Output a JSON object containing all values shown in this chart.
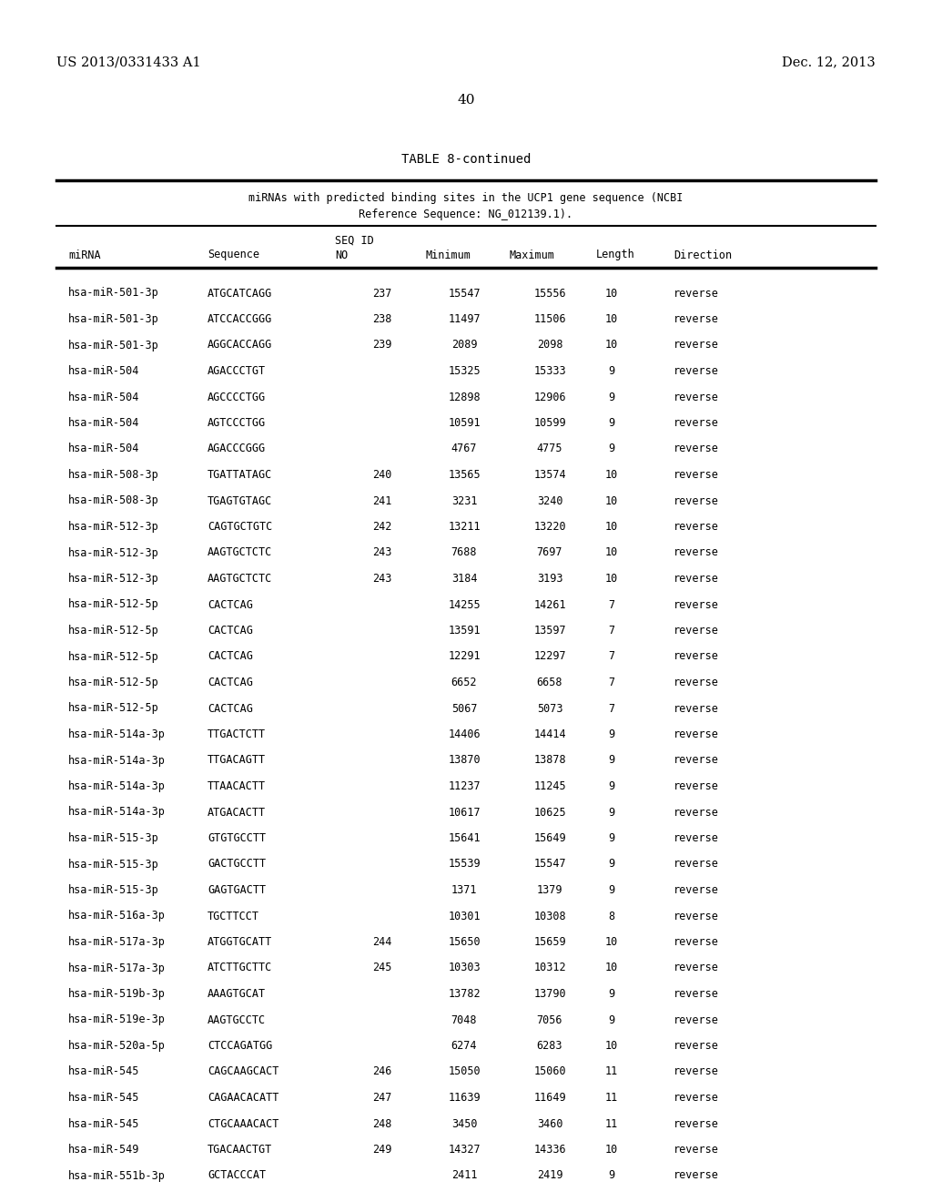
{
  "page_number": "40",
  "patent_number": "US 2013/0331433 A1",
  "patent_date": "Dec. 12, 2013",
  "table_title": "TABLE 8-continued",
  "table_header_line1": "miRNAs with predicted binding sites in the UCP1 gene sequence (NCBI",
  "table_header_line2": "Reference Sequence: NG_012139.1).",
  "rows": [
    [
      "hsa-miR-501-3p",
      "ATGCATCAGG",
      "237",
      "15547",
      "15556",
      "10",
      "reverse"
    ],
    [
      "hsa-miR-501-3p",
      "ATCCACCGGG",
      "238",
      "11497",
      "11506",
      "10",
      "reverse"
    ],
    [
      "hsa-miR-501-3p",
      "AGGCACCAGG",
      "239",
      "2089",
      "2098",
      "10",
      "reverse"
    ],
    [
      "hsa-miR-504",
      "AGACCCTGT",
      "",
      "15325",
      "15333",
      "9",
      "reverse"
    ],
    [
      "hsa-miR-504",
      "AGCCCCTGG",
      "",
      "12898",
      "12906",
      "9",
      "reverse"
    ],
    [
      "hsa-miR-504",
      "AGTCCCTGG",
      "",
      "10591",
      "10599",
      "9",
      "reverse"
    ],
    [
      "hsa-miR-504",
      "AGACCCGGG",
      "",
      "4767",
      "4775",
      "9",
      "reverse"
    ],
    [
      "hsa-miR-508-3p",
      "TGATTATAGC",
      "240",
      "13565",
      "13574",
      "10",
      "reverse"
    ],
    [
      "hsa-miR-508-3p",
      "TGAGTGTAGC",
      "241",
      "3231",
      "3240",
      "10",
      "reverse"
    ],
    [
      "hsa-miR-512-3p",
      "CAGTGCTGTC",
      "242",
      "13211",
      "13220",
      "10",
      "reverse"
    ],
    [
      "hsa-miR-512-3p",
      "AAGTGCTCTC",
      "243",
      "7688",
      "7697",
      "10",
      "reverse"
    ],
    [
      "hsa-miR-512-3p",
      "AAGTGCTCTC",
      "243",
      "3184",
      "3193",
      "10",
      "reverse"
    ],
    [
      "hsa-miR-512-5p",
      "CACTCAG",
      "",
      "14255",
      "14261",
      "7",
      "reverse"
    ],
    [
      "hsa-miR-512-5p",
      "CACTCAG",
      "",
      "13591",
      "13597",
      "7",
      "reverse"
    ],
    [
      "hsa-miR-512-5p",
      "CACTCAG",
      "",
      "12291",
      "12297",
      "7",
      "reverse"
    ],
    [
      "hsa-miR-512-5p",
      "CACTCAG",
      "",
      "6652",
      "6658",
      "7",
      "reverse"
    ],
    [
      "hsa-miR-512-5p",
      "CACTCAG",
      "",
      "5067",
      "5073",
      "7",
      "reverse"
    ],
    [
      "hsa-miR-514a-3p",
      "TTGACTCTT",
      "",
      "14406",
      "14414",
      "9",
      "reverse"
    ],
    [
      "hsa-miR-514a-3p",
      "TTGACAGTT",
      "",
      "13870",
      "13878",
      "9",
      "reverse"
    ],
    [
      "hsa-miR-514a-3p",
      "TTAACACTT",
      "",
      "11237",
      "11245",
      "9",
      "reverse"
    ],
    [
      "hsa-miR-514a-3p",
      "ATGACACTT",
      "",
      "10617",
      "10625",
      "9",
      "reverse"
    ],
    [
      "hsa-miR-515-3p",
      "GTGTGCCTT",
      "",
      "15641",
      "15649",
      "9",
      "reverse"
    ],
    [
      "hsa-miR-515-3p",
      "GACTGCCTT",
      "",
      "15539",
      "15547",
      "9",
      "reverse"
    ],
    [
      "hsa-miR-515-3p",
      "GAGTGACTT",
      "",
      "1371",
      "1379",
      "9",
      "reverse"
    ],
    [
      "hsa-miR-516a-3p",
      "TGCTTCCT",
      "",
      "10301",
      "10308",
      "8",
      "reverse"
    ],
    [
      "hsa-miR-517a-3p",
      "ATGGTGCATT",
      "244",
      "15650",
      "15659",
      "10",
      "reverse"
    ],
    [
      "hsa-miR-517a-3p",
      "ATCTTGCTTC",
      "245",
      "10303",
      "10312",
      "10",
      "reverse"
    ],
    [
      "hsa-miR-519b-3p",
      "AAAGTGCAT",
      "",
      "13782",
      "13790",
      "9",
      "reverse"
    ],
    [
      "hsa-miR-519e-3p",
      "AAGTGCCTC",
      "",
      "7048",
      "7056",
      "9",
      "reverse"
    ],
    [
      "hsa-miR-520a-5p",
      "CTCCAGATGG",
      "",
      "6274",
      "6283",
      "10",
      "reverse"
    ],
    [
      "hsa-miR-545",
      "CAGCAAGCACT",
      "246",
      "15050",
      "15060",
      "11",
      "reverse"
    ],
    [
      "hsa-miR-545",
      "CAGAACACATT",
      "247",
      "11639",
      "11649",
      "11",
      "reverse"
    ],
    [
      "hsa-miR-545",
      "CTGCAAACACT",
      "248",
      "3450",
      "3460",
      "11",
      "reverse"
    ],
    [
      "hsa-miR-549",
      "TGACAACTGT",
      "249",
      "14327",
      "14336",
      "10",
      "reverse"
    ],
    [
      "hsa-miR-551b-3p",
      "GCTACCCAT",
      "",
      "2411",
      "2419",
      "9",
      "reverse"
    ]
  ]
}
